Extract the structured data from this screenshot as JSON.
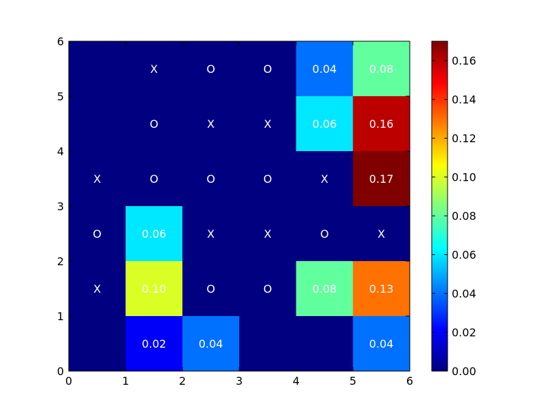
{
  "chart_data": {
    "type": "heatmap",
    "colormap": "jet",
    "grid": false,
    "x_ticks": [
      "0",
      "1",
      "2",
      "3",
      "4",
      "5",
      "6"
    ],
    "y_ticks": [
      "0",
      "1",
      "2",
      "3",
      "4",
      "5",
      "6"
    ],
    "xlim": [
      0,
      6
    ],
    "ylim": [
      0,
      6
    ],
    "colorbar": {
      "range": [
        0,
        0.17
      ],
      "ticks": [
        "0.00",
        "0.02",
        "0.04",
        "0.06",
        "0.08",
        "0.10",
        "0.12",
        "0.14",
        "0.16"
      ]
    },
    "rows": [
      {
        "y_range": [
          5,
          6
        ],
        "values": [
          0,
          0,
          0,
          0,
          0.04,
          0.08
        ],
        "labels": [
          "",
          "X",
          "O",
          "O",
          "0.04",
          "0.08"
        ]
      },
      {
        "y_range": [
          4,
          5
        ],
        "values": [
          0,
          0,
          0,
          0,
          0.06,
          0.16
        ],
        "labels": [
          "",
          "O",
          "X",
          "X",
          "0.06",
          "0.16"
        ]
      },
      {
        "y_range": [
          3,
          4
        ],
        "values": [
          0,
          0,
          0,
          0,
          0,
          0.17
        ],
        "labels": [
          "X",
          "O",
          "O",
          "O",
          "X",
          "0.17"
        ]
      },
      {
        "y_range": [
          2,
          3
        ],
        "values": [
          0,
          0.06,
          0,
          0,
          0,
          0
        ],
        "labels": [
          "O",
          "0.06",
          "X",
          "X",
          "O",
          "X"
        ]
      },
      {
        "y_range": [
          1,
          2
        ],
        "values": [
          0,
          0.1,
          0,
          0,
          0.08,
          0.13
        ],
        "labels": [
          "X",
          "0.10",
          "O",
          "O",
          "0.08",
          "0.13"
        ]
      },
      {
        "y_range": [
          0,
          1
        ],
        "values": [
          0,
          0.02,
          0.04,
          0,
          0,
          0.04
        ],
        "labels": [
          "",
          "0.02",
          "0.04",
          "",
          "",
          "0.04"
        ]
      }
    ]
  }
}
